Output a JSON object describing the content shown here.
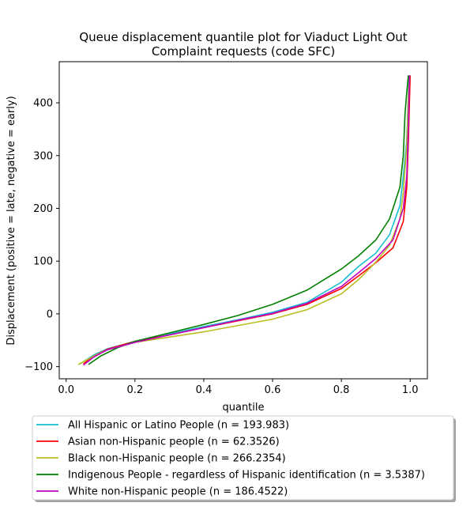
{
  "chart_data": {
    "type": "line",
    "title_lines": [
      "Queue displacement quantile plot for Viaduct Light Out",
      "Complaint  requests (code SFC)"
    ],
    "xlabel": "quantile",
    "ylabel": "Displacement (positive = late, negative = early)",
    "xlim": [
      -0.02,
      1.05
    ],
    "ylim": [
      -123,
      478
    ],
    "xticks": [
      0.0,
      0.2,
      0.4,
      0.6,
      0.8,
      1.0
    ],
    "xtick_labels": [
      "0.0",
      "0.2",
      "0.4",
      "0.6",
      "0.8",
      "1.0"
    ],
    "yticks": [
      -100,
      0,
      100,
      200,
      300,
      400
    ],
    "ytick_labels": [
      "−100",
      "0",
      "100",
      "200",
      "300",
      "400"
    ],
    "grid": false,
    "legend_placement": "below plot",
    "series": [
      {
        "name": "All Hispanic or Latino People (n = 193.983)",
        "color": "#17becf",
        "x": [
          0.04,
          0.08,
          0.12,
          0.2,
          0.3,
          0.4,
          0.5,
          0.6,
          0.7,
          0.8,
          0.85,
          0.9,
          0.94,
          0.97,
          0.98,
          0.99,
          0.995,
          0.997
        ],
        "y": [
          -95,
          -78,
          -66,
          -52,
          -38,
          -24,
          -11,
          3,
          22,
          60,
          90,
          115,
          150,
          205,
          260,
          330,
          420,
          452
        ]
      },
      {
        "name": "Asian non-Hispanic people (n = 62.3526)",
        "color": "#ff0000",
        "x": [
          0.05,
          0.08,
          0.12,
          0.2,
          0.3,
          0.4,
          0.5,
          0.6,
          0.7,
          0.8,
          0.85,
          0.9,
          0.95,
          0.98,
          0.99,
          0.995,
          1.0
        ],
        "y": [
          -95,
          -80,
          -67,
          -52,
          -40,
          -26,
          -13,
          0,
          18,
          48,
          72,
          97,
          125,
          175,
          240,
          330,
          452
        ]
      },
      {
        "name": "Black non-Hispanic people (n = 266.2354)",
        "color": "#bcbd22",
        "x": [
          0.035,
          0.08,
          0.12,
          0.2,
          0.3,
          0.4,
          0.5,
          0.6,
          0.7,
          0.8,
          0.85,
          0.9,
          0.94,
          0.97,
          0.98,
          0.99,
          0.995,
          0.998
        ],
        "y": [
          -96,
          -80,
          -68,
          -54,
          -44,
          -34,
          -22,
          -10,
          8,
          38,
          65,
          98,
          130,
          180,
          230,
          320,
          410,
          452
        ]
      },
      {
        "name": "Indigenous People - regardless of Hispanic identification (n = 3.5387)",
        "color": "#008000",
        "x": [
          0.065,
          0.1,
          0.15,
          0.2,
          0.3,
          0.4,
          0.5,
          0.6,
          0.7,
          0.8,
          0.85,
          0.9,
          0.94,
          0.97,
          0.98,
          0.985,
          0.99,
          0.995
        ],
        "y": [
          -96,
          -80,
          -64,
          -52,
          -36,
          -20,
          -3,
          18,
          45,
          85,
          110,
          140,
          180,
          240,
          300,
          380,
          420,
          452
        ]
      },
      {
        "name": "White non-Hispanic people (n = 186.4522)",
        "color": "#bf00bf",
        "x": [
          0.05,
          0.08,
          0.12,
          0.2,
          0.3,
          0.4,
          0.5,
          0.6,
          0.7,
          0.8,
          0.85,
          0.9,
          0.95,
          0.98,
          0.99,
          0.995,
          0.998
        ],
        "y": [
          -97,
          -82,
          -68,
          -54,
          -40,
          -26,
          -12,
          1,
          20,
          52,
          78,
          105,
          140,
          200,
          260,
          360,
          452
        ]
      }
    ]
  }
}
